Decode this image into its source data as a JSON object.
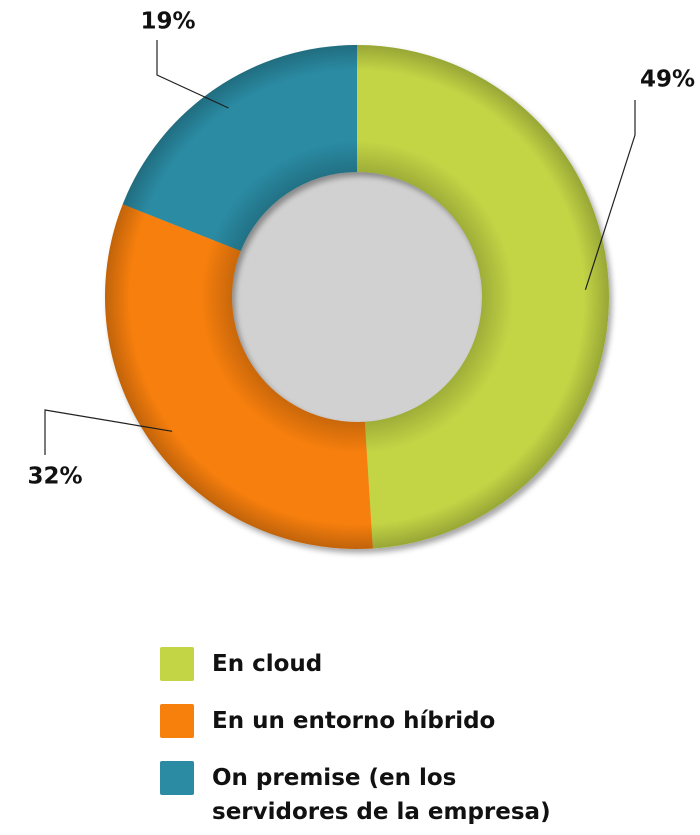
{
  "chart_data": {
    "type": "pie",
    "donut": true,
    "categories": [
      "En cloud",
      "En un entorno híbrido",
      "On premise (en los servidores de la empresa)"
    ],
    "values": [
      49,
      32,
      19
    ],
    "value_labels": [
      "49%",
      "32%",
      "19%"
    ],
    "colors": [
      "#c3d544",
      "#f77f0c",
      "#2b8ba3"
    ]
  }
}
